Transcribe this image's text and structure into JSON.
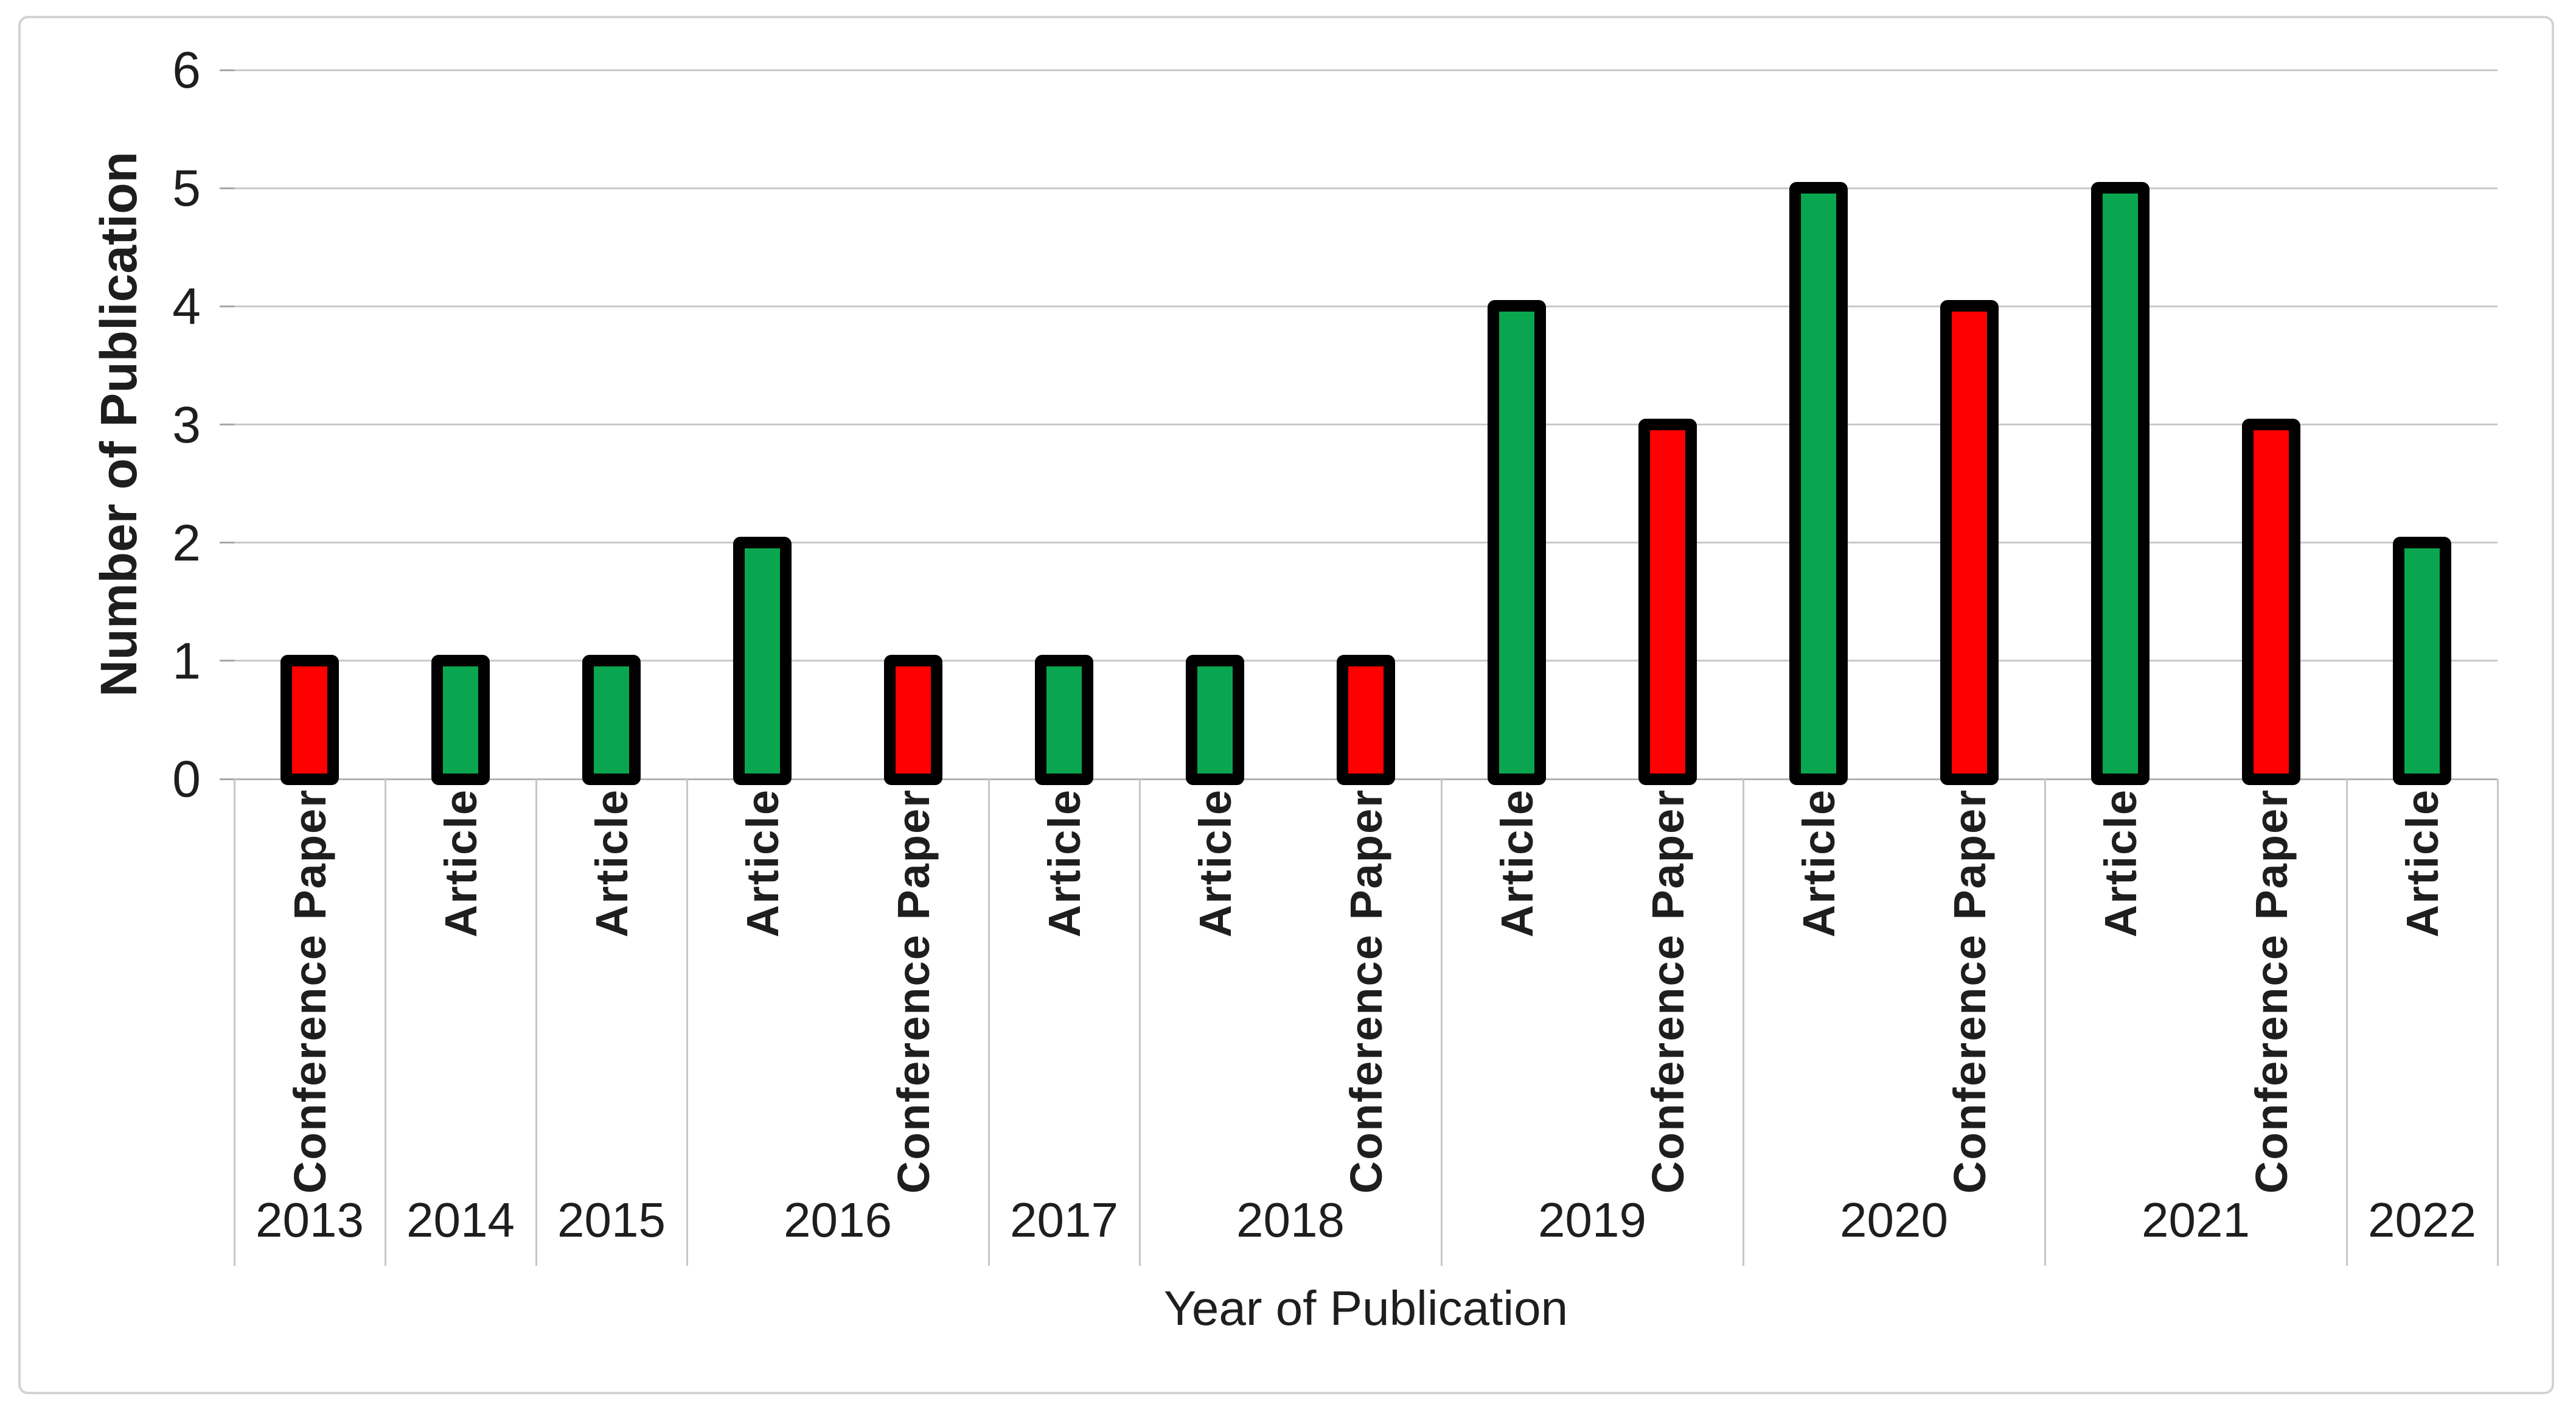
{
  "chart_data": {
    "type": "bar",
    "title": "",
    "xlabel": "Year of Publication",
    "ylabel": "Number of Publication",
    "ylim": [
      0,
      6
    ],
    "yticks": [
      "0",
      "1",
      "2",
      "3",
      "4",
      "5",
      "6"
    ],
    "grid": true,
    "legend_position": "none",
    "axis_structure": "two-level category axis: publication type within year",
    "groups": [
      {
        "year": "2013",
        "bars": [
          {
            "type": "Conference Paper",
            "value": 1
          }
        ]
      },
      {
        "year": "2014",
        "bars": [
          {
            "type": "Article",
            "value": 1
          }
        ]
      },
      {
        "year": "2015",
        "bars": [
          {
            "type": "Article",
            "value": 1
          }
        ]
      },
      {
        "year": "2016",
        "bars": [
          {
            "type": "Article",
            "value": 2
          },
          {
            "type": "Conference Paper",
            "value": 1
          }
        ]
      },
      {
        "year": "2017",
        "bars": [
          {
            "type": "Article",
            "value": 1
          }
        ]
      },
      {
        "year": "2018",
        "bars": [
          {
            "type": "Article",
            "value": 1
          },
          {
            "type": "Conference Paper",
            "value": 1
          }
        ]
      },
      {
        "year": "2019",
        "bars": [
          {
            "type": "Article",
            "value": 4
          },
          {
            "type": "Conference Paper",
            "value": 3
          }
        ]
      },
      {
        "year": "2020",
        "bars": [
          {
            "type": "Article",
            "value": 5
          },
          {
            "type": "Conference Paper",
            "value": 4
          }
        ]
      },
      {
        "year": "2021",
        "bars": [
          {
            "type": "Article",
            "value": 5
          },
          {
            "type": "Conference Paper",
            "value": 3
          }
        ]
      },
      {
        "year": "2022",
        "bars": [
          {
            "type": "Article",
            "value": 2
          }
        ]
      }
    ],
    "colors": {
      "Article": "#0AA64F",
      "Conference Paper": "#FE0000",
      "bar_outline": "#000000",
      "gridline": "#C9C9C9",
      "axis_line": "#B3B3B3",
      "separator": "#C6C6C6",
      "text": "#1E1E1E",
      "figure_border": "#D3D3D3"
    }
  }
}
